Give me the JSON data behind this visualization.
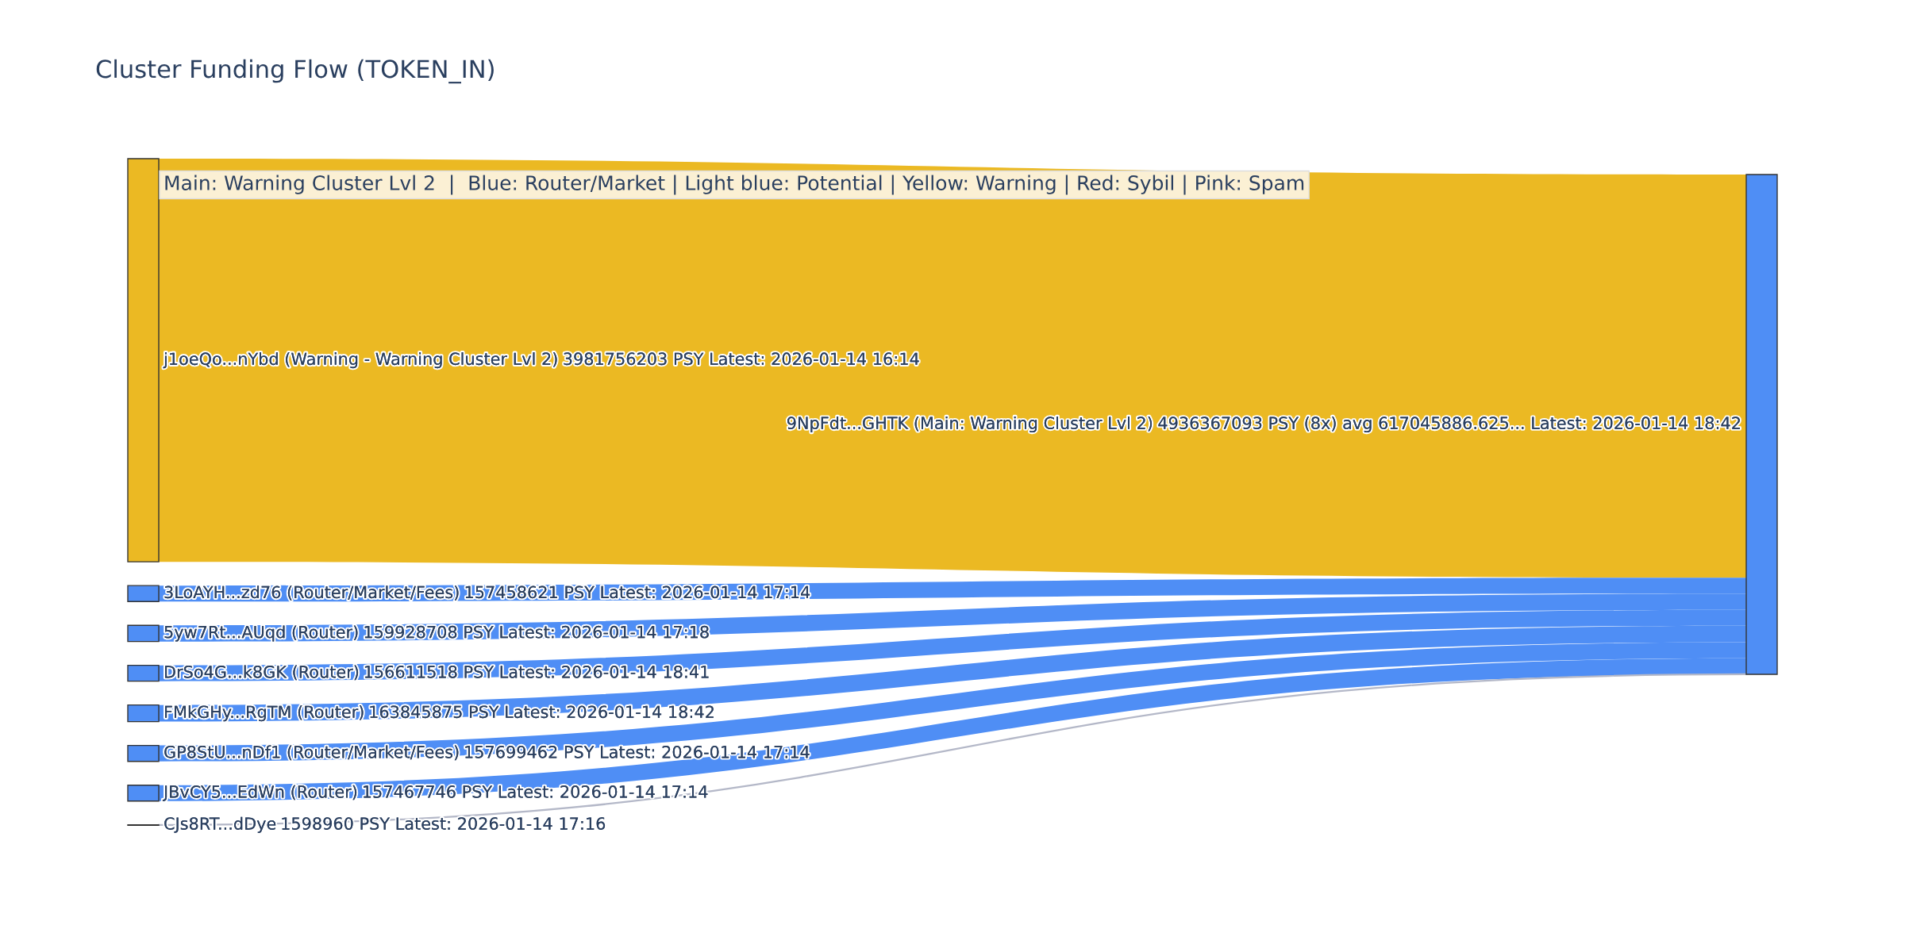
{
  "chart_data": {
    "type": "other",
    "title": "Cluster Funding Flow (TOKEN_IN)",
    "categories": [
      "j1oeQo...nYbd (Warning - Warning Cluster Lvl 2)",
      "3LoAYH...zd76 (Router/Market/Fees)",
      "5yw7Rt...AUqd (Router)",
      "DrSo4G...k8GK (Router)",
      "FMkGHy...RgTM (Router)",
      "GP8StU...nDf1 (Router/Market/Fees)",
      "JBvCY5...EdWn (Router)",
      "CJs8RT...dDye",
      "9NpFdt...GHTK (Main: Warning Cluster Lvl 2)"
    ],
    "values": [
      3981756203,
      157458621,
      159928708,
      156611518,
      163845875,
      157699462,
      157467746,
      1598960,
      4936367093
    ],
    "value_labels": [
      "3981756203 PSY Latest: 2026-01-14 16:14",
      "157458621 PSY Latest: 2026-01-14 17:14",
      "159928708 PSY Latest: 2026-01-14 17:18",
      "156611518 PSY Latest: 2026-01-14 18:41",
      "163845875 PSY Latest: 2026-01-14 18:42",
      "157699462 PSY Latest: 2026-01-14 17:14",
      "157467746 PSY Latest: 2026-01-14 17:14",
      "1598960 PSY Latest: 2026-01-14 17:16",
      "4936367093 PSY (8x) avg 617045886.625... Latest: 2026-01-14 18:42"
    ],
    "colors": [
      "#ebb923",
      "#4f8ef5",
      "#4f8ef5",
      "#4f8ef5",
      "#4f8ef5",
      "#4f8ef5",
      "#4f8ef5",
      "#b4b8c8",
      "#4f8ef5"
    ],
    "annotations": [
      "Main: Warning Cluster Lvl 2  |  Blue: Router/Market | Light blue: Potential | Yellow: Warning | Red: Sybil | Pink: Spam"
    ]
  }
}
